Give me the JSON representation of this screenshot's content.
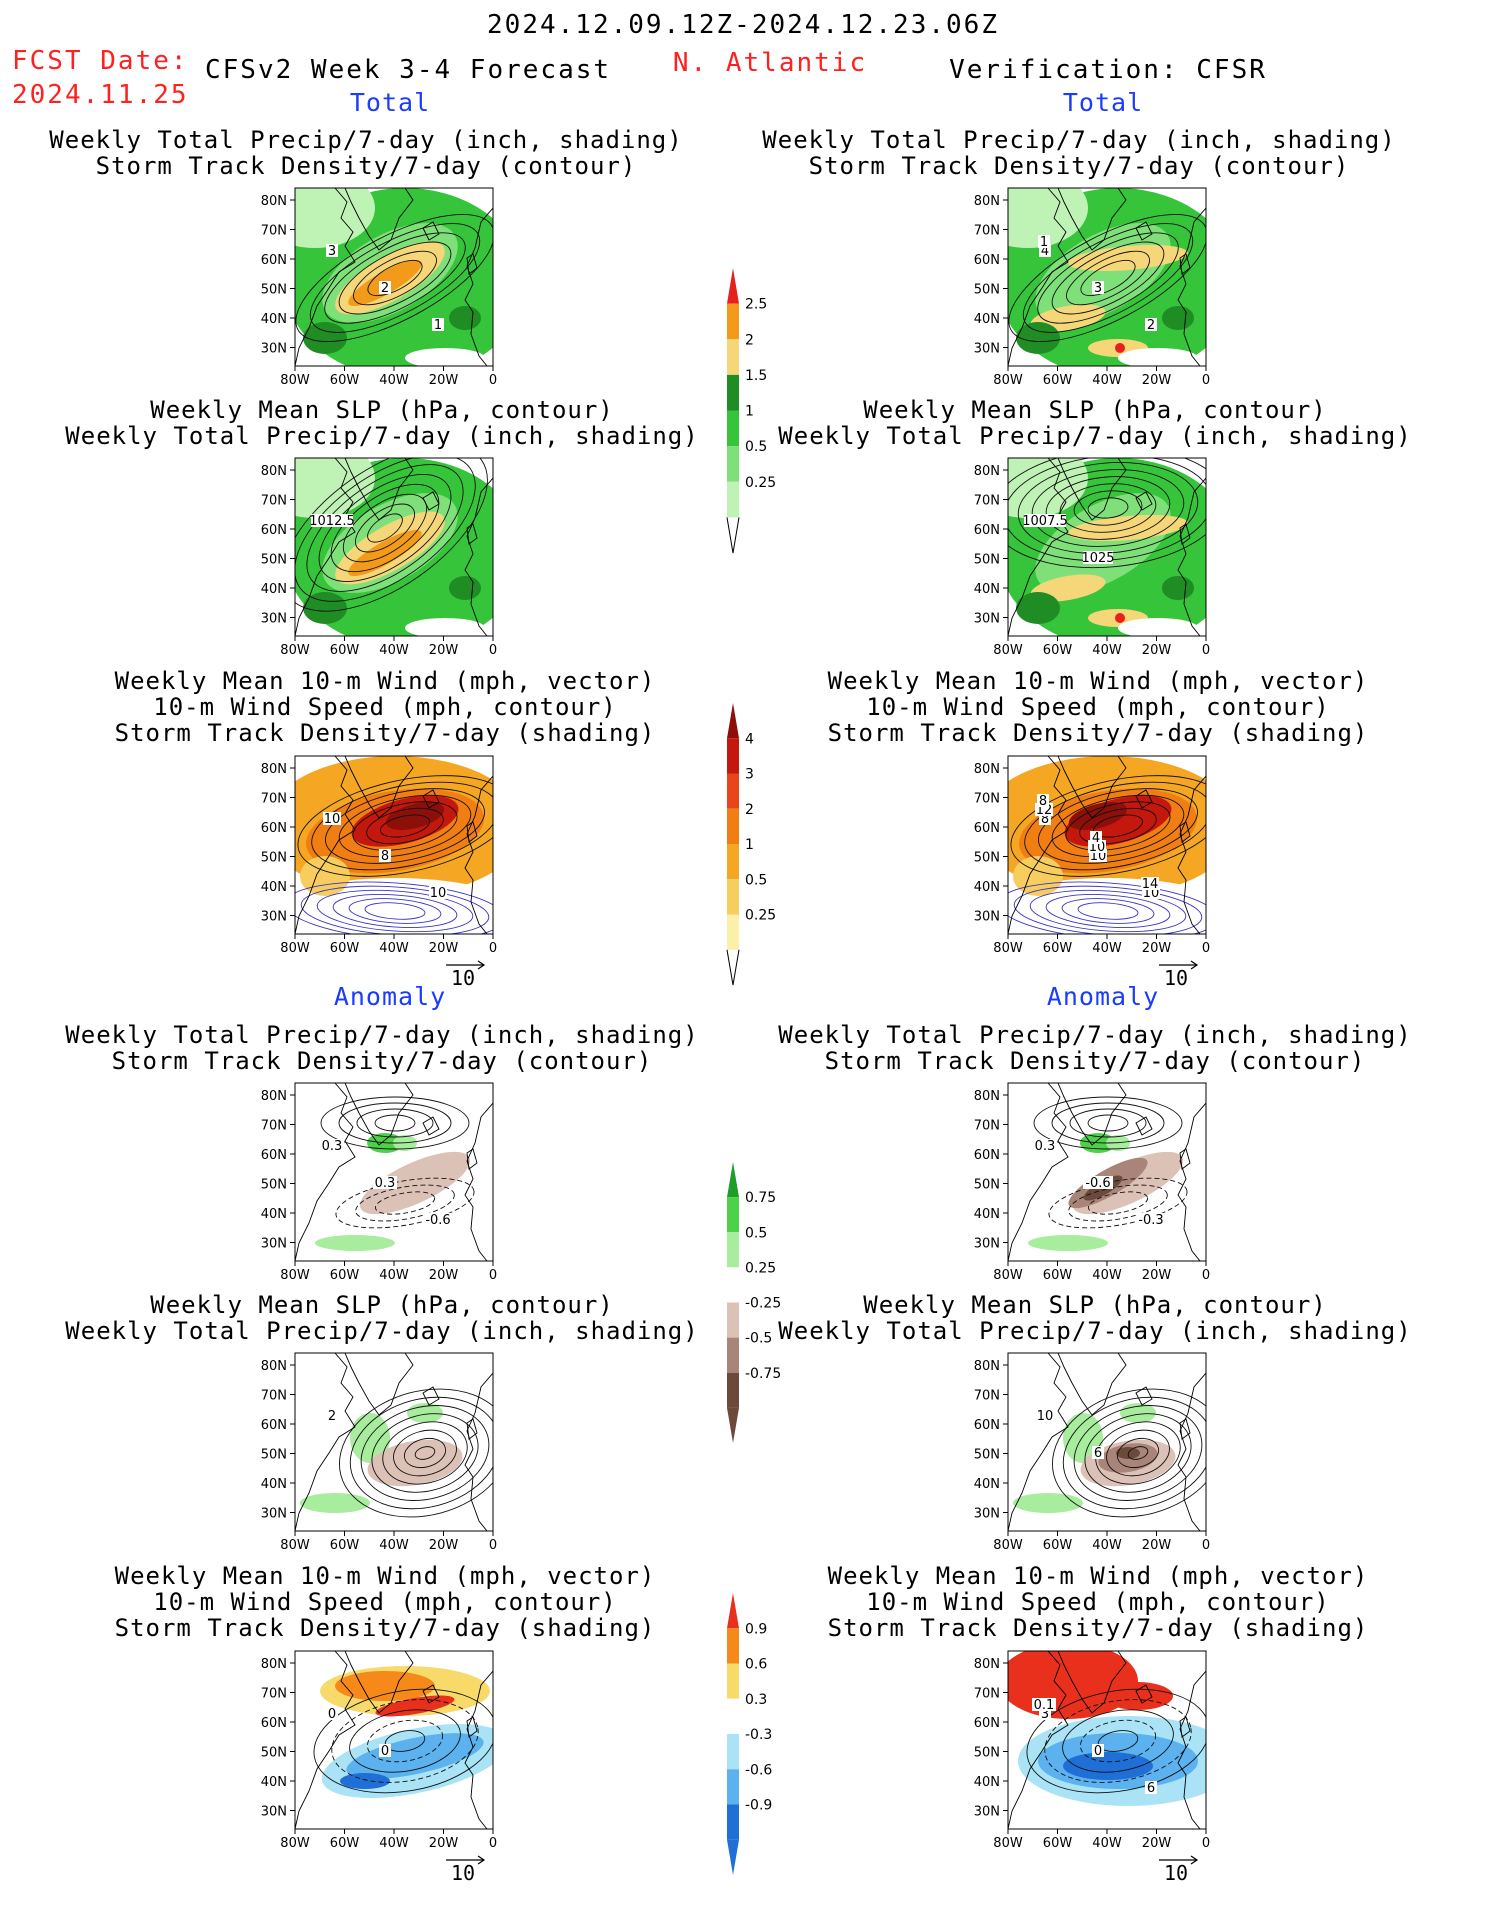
{
  "header": {
    "period": "2024.12.09.12Z-2024.12.23.06Z",
    "fcst_label": "FCST Date:",
    "fcst_date": "2024.11.25",
    "model": "CFSv2 Week 3-4 Forecast",
    "region": "N. Atlantic",
    "verification": "Verification: CFSR"
  },
  "sections": {
    "total": "Total",
    "anomaly": "Anomaly"
  },
  "panel_titles": {
    "precip_storm": [
      "Weekly Total Precip/7-day (inch, shading)",
      "Storm Track Density/7-day (contour)"
    ],
    "slp_precip": [
      "Weekly Mean SLP (hPa, contour)",
      "Weekly Total Precip/7-day (inch, shading)"
    ],
    "wind_storm": [
      "Weekly Mean 10-m Wind (mph, vector)",
      "10-m Wind Speed (mph, contour)",
      "Storm Track Density/7-day (shading)"
    ]
  },
  "axes": {
    "lat": [
      "80N",
      "70N",
      "60N",
      "50N",
      "40N",
      "30N"
    ],
    "lon": [
      "80W",
      "60W",
      "40W",
      "20W",
      "0"
    ]
  },
  "vector_ref": "10",
  "contour_labels": {
    "t1_left": [
      "3",
      "2",
      "1"
    ],
    "t1_right": [
      "4",
      "3",
      "2",
      "1"
    ],
    "t2_left": [
      "1012.5"
    ],
    "t2_right": [
      "1007.5",
      "1025"
    ],
    "t3_left": [
      "10",
      "8",
      "10"
    ],
    "t3_right": [
      "8",
      "10",
      "10",
      "12",
      "10",
      "14",
      "8",
      "4"
    ],
    "a1_left": [
      "0.3",
      "0.3",
      "-0.6"
    ],
    "a1_right": [
      "0.3",
      "-0.6",
      "-0.3"
    ],
    "a2_left": [
      "2"
    ],
    "a2_right": [
      "10",
      "6"
    ],
    "a3_left": [
      "0",
      "0"
    ],
    "a3_right": [
      "3",
      "0",
      "6",
      "0.1"
    ]
  },
  "colorbars": {
    "precip_total": {
      "labels": [
        "2.5",
        "2",
        "1.5",
        "1",
        "0.5",
        "0.25"
      ],
      "colors": [
        "#e8201c",
        "#f29a1a",
        "#f5d77a",
        "#1f8c24",
        "#36c43a",
        "#7fe07a",
        "#bff2b5"
      ]
    },
    "storm_total": {
      "labels": [
        "4",
        "3",
        "2",
        "1",
        "0.5",
        "0.25"
      ],
      "colors": [
        "#8c0f0a",
        "#c4170e",
        "#e8461a",
        "#f07e12",
        "#f5a623",
        "#f7cd5e",
        "#fbf0a8"
      ]
    },
    "precip_anom": {
      "labels": [
        "0.75",
        "0.5",
        "0.25",
        "-0.25",
        "-0.5",
        "-0.75"
      ],
      "colors": [
        "#1f9c2a",
        "#4fd04a",
        "#a8ec9e",
        "#ffffff",
        "#dcc1b7",
        "#a88578",
        "#6b4a3c"
      ]
    },
    "storm_anom": {
      "labels": [
        "0.9",
        "0.6",
        "0.3",
        "-0.3",
        "-0.6",
        "-0.9"
      ],
      "colors": [
        "#e8301c",
        "#f58a1a",
        "#f7da6a",
        "#ffffff",
        "#a9e3f5",
        "#5bb2ee",
        "#1f6fd6"
      ]
    }
  },
  "colors": {
    "red": "#ff2020",
    "blue": "#1a3cff",
    "ocean": "#ffffff",
    "coast": "#000000"
  }
}
